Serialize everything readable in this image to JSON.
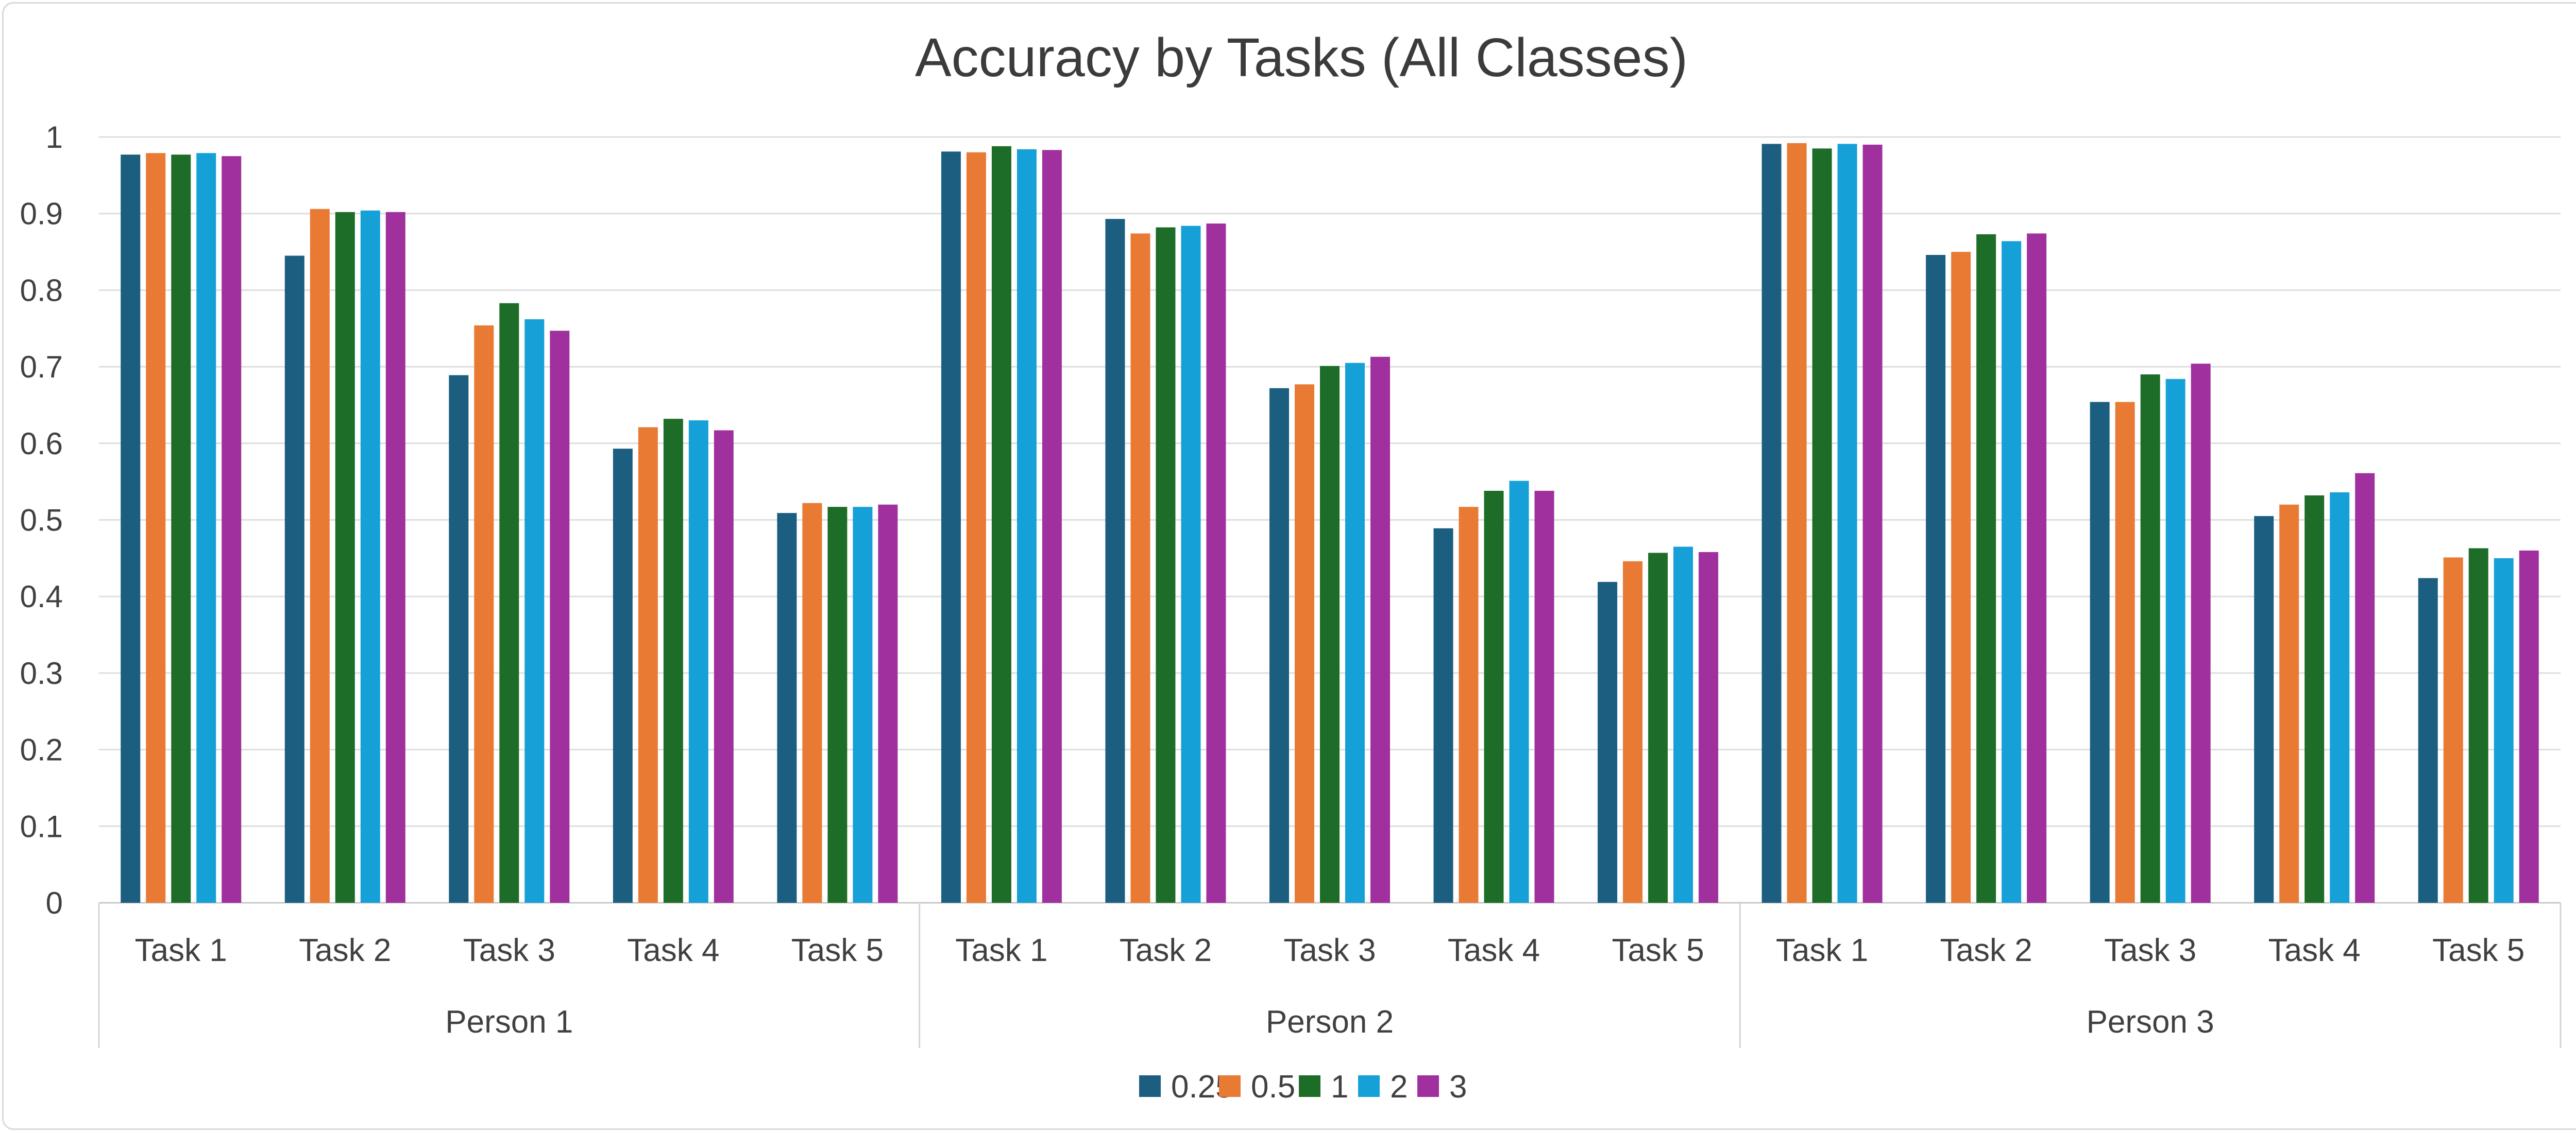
{
  "chart_data": {
    "type": "bar",
    "title": "Accuracy by Tasks (All Classes)",
    "xlabel": "",
    "ylabel": "",
    "ylim": [
      0,
      1
    ],
    "yticks": [
      "0",
      "0.1",
      "0.2",
      "0.3",
      "0.4",
      "0.5",
      "0.6",
      "0.7",
      "0.8",
      "0.9",
      "1"
    ],
    "grid": true,
    "legend_position": "bottom",
    "groups": [
      "Person 1",
      "Person 2",
      "Person 3"
    ],
    "categories": [
      "Task 1",
      "Task 2",
      "Task 3",
      "Task 4",
      "Task 5",
      "Task 1",
      "Task 2",
      "Task 3",
      "Task 4",
      "Task 5",
      "Task 1",
      "Task 2",
      "Task 3",
      "Task 4",
      "Task 5"
    ],
    "series": [
      {
        "name": "0.25",
        "color": "#1b5e80",
        "values": [
          0.977,
          0.845,
          0.689,
          0.593,
          0.509,
          0.981,
          0.893,
          0.672,
          0.489,
          0.419,
          0.991,
          0.846,
          0.654,
          0.505,
          0.424
        ]
      },
      {
        "name": "0.5",
        "color": "#e97a34",
        "values": [
          0.979,
          0.906,
          0.754,
          0.621,
          0.522,
          0.98,
          0.874,
          0.677,
          0.517,
          0.446,
          0.992,
          0.85,
          0.654,
          0.52,
          0.451
        ]
      },
      {
        "name": "1",
        "color": "#1d6d28",
        "values": [
          0.977,
          0.902,
          0.783,
          0.632,
          0.517,
          0.988,
          0.882,
          0.701,
          0.538,
          0.457,
          0.985,
          0.873,
          0.69,
          0.532,
          0.463
        ]
      },
      {
        "name": "2",
        "color": "#16a0d8",
        "values": [
          0.979,
          0.904,
          0.762,
          0.63,
          0.517,
          0.984,
          0.884,
          0.705,
          0.551,
          0.465,
          0.991,
          0.864,
          0.684,
          0.536,
          0.45
        ]
      },
      {
        "name": "3",
        "color": "#a0309e",
        "values": [
          0.975,
          0.902,
          0.747,
          0.617,
          0.52,
          0.983,
          0.887,
          0.713,
          0.538,
          0.458,
          0.99,
          0.874,
          0.704,
          0.561,
          0.46
        ]
      }
    ]
  }
}
